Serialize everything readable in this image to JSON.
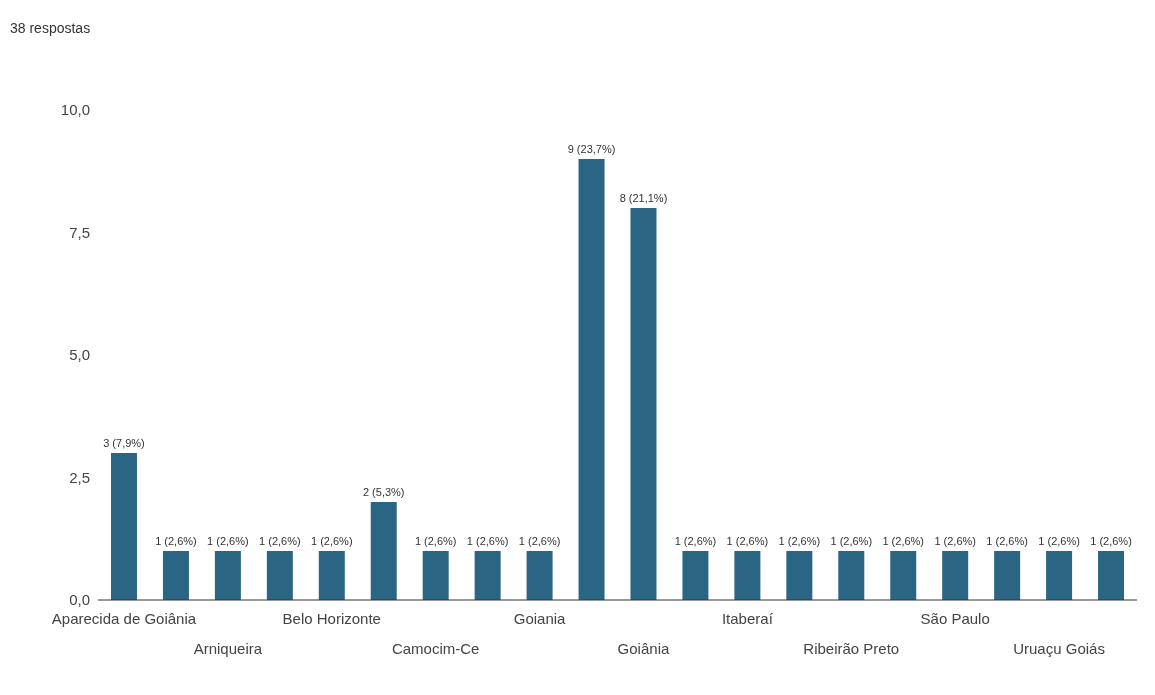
{
  "chart_data": {
    "type": "bar",
    "title": "38 respostas",
    "categories": [
      "Aparecida de Goiânia",
      null,
      "Arniqueira",
      null,
      "Belo Horizonte",
      null,
      "Camocim-Ce",
      null,
      "Goiania",
      null,
      "Goiânia",
      null,
      "Itaberaí",
      null,
      "Ribeirão Preto",
      null,
      "São Paulo",
      null,
      "Uruaçu Goiás",
      null
    ],
    "values": [
      3,
      1,
      1,
      1,
      1,
      2,
      1,
      1,
      1,
      9,
      8,
      1,
      1,
      1,
      1,
      1,
      1,
      1,
      1,
      1
    ],
    "value_labels": [
      "3 (7,9%)",
      "1 (2,6%)",
      "1 (2,6%)",
      "1 (2,6%)",
      "1 (2,6%)",
      "2 (5,3%)",
      "1 (2,6%)",
      "1 (2,6%)",
      "1 (2,6%)",
      "9 (23,7%)",
      "8 (21,1%)",
      "1 (2,6%)",
      "1 (2,6%)",
      "1 (2,6%)",
      "1 (2,6%)",
      "1 (2,6%)",
      "1 (2,6%)",
      "1 (2,6%)",
      "1 (2,6%)",
      "1 (2,6%)"
    ],
    "color": "#2a6683",
    "ylim": [
      0,
      10
    ],
    "yticks": [
      {
        "value": 0,
        "label": "0,0"
      },
      {
        "value": 2.5,
        "label": "2,5"
      },
      {
        "value": 5,
        "label": "5,0"
      },
      {
        "value": 7.5,
        "label": "7,5"
      },
      {
        "value": 10,
        "label": "10,0"
      }
    ],
    "grid": false
  }
}
